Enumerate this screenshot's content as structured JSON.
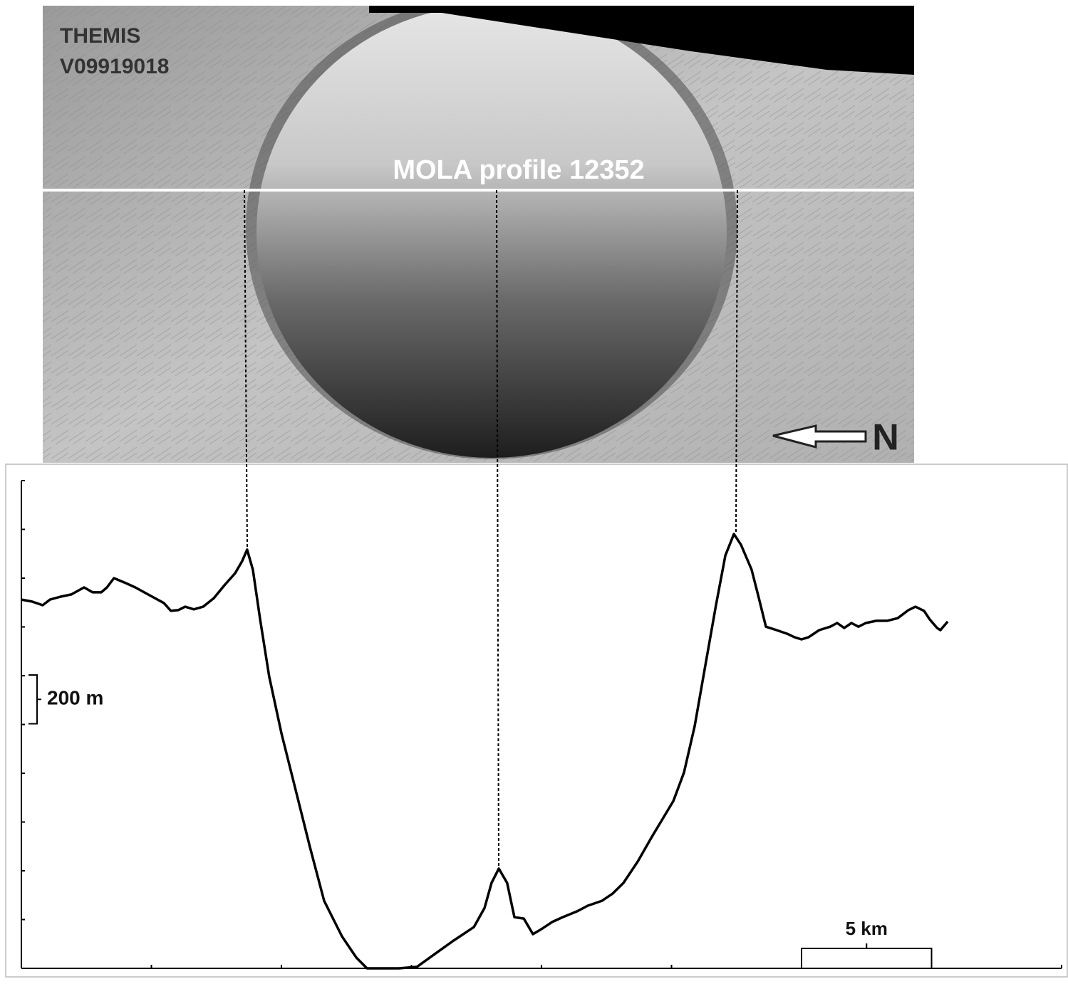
{
  "image": {
    "label_line1": "THEMIS",
    "label_line2": "V09919018",
    "profile_label": "MOLA profile 12352",
    "north_label": "N"
  },
  "chart_data": {
    "type": "line",
    "color": "#000000",
    "x": [
      0.0,
      0.41,
      0.82,
      1.1,
      1.51,
      1.92,
      2.41,
      2.74,
      3.07,
      3.29,
      3.56,
      3.97,
      4.38,
      4.93,
      5.48,
      5.75,
      6.03,
      6.3,
      6.63,
      6.99,
      7.4,
      7.81,
      8.22,
      8.49,
      8.68,
      8.9,
      9.18,
      9.53,
      10.0,
      10.55,
      11.1,
      11.64,
      12.33,
      12.88,
      13.29,
      13.97,
      14.52,
      15.21,
      15.89,
      16.58,
      17.4,
      17.81,
      18.08,
      18.36,
      18.68,
      18.96,
      19.32,
      19.67,
      20.0,
      20.41,
      20.82,
      21.37,
      21.78,
      22.33,
      22.74,
      23.15,
      23.7,
      24.25,
      24.66,
      25.07,
      25.48,
      25.89,
      26.3,
      26.71,
      27.07,
      27.4,
      27.67,
      28.08,
      28.36,
      28.63,
      29.04,
      29.45,
      29.73,
      30.0,
      30.27,
      30.68,
      31.1,
      31.37,
      31.64,
      31.92,
      32.19,
      32.47,
      32.88,
      33.29,
      33.7,
      34.11,
      34.38,
      34.71,
      34.93,
      35.21,
      35.34,
      35.62
    ],
    "values": [
      1512,
      1504,
      1489,
      1512,
      1524,
      1533,
      1562,
      1542,
      1542,
      1562,
      1600,
      1582,
      1562,
      1530,
      1498,
      1466,
      1469,
      1483,
      1472,
      1483,
      1518,
      1571,
      1620,
      1670,
      1717,
      1635,
      1431,
      1197,
      964,
      730,
      496,
      277,
      131,
      44,
      0,
      0,
      0,
      6,
      58,
      111,
      169,
      248,
      350,
      409,
      350,
      210,
      204,
      140,
      161,
      190,
      210,
      234,
      257,
      277,
      307,
      350,
      438,
      540,
      613,
      686,
      803,
      993,
      1241,
      1489,
      1693,
      1781,
      1737,
      1635,
      1518,
      1401,
      1387,
      1372,
      1358,
      1349,
      1358,
      1387,
      1401,
      1416,
      1396,
      1416,
      1401,
      1416,
      1425,
      1425,
      1436,
      1469,
      1483,
      1466,
      1431,
      1396,
      1387,
      1422
    ],
    "xlim": [
      0,
      40
    ],
    "xticks": [
      0,
      5,
      10,
      15,
      20,
      25,
      30,
      35,
      40
    ],
    "ylim": [
      0,
      2000
    ],
    "yticks": [
      0,
      200,
      400,
      600,
      800,
      1000,
      1200,
      1400,
      1600,
      1800,
      2000
    ],
    "scale_bars": [
      {
        "axis": "y",
        "value": 200,
        "label": "200 m"
      },
      {
        "axis": "x",
        "value": 5,
        "label": "5 km"
      }
    ]
  }
}
